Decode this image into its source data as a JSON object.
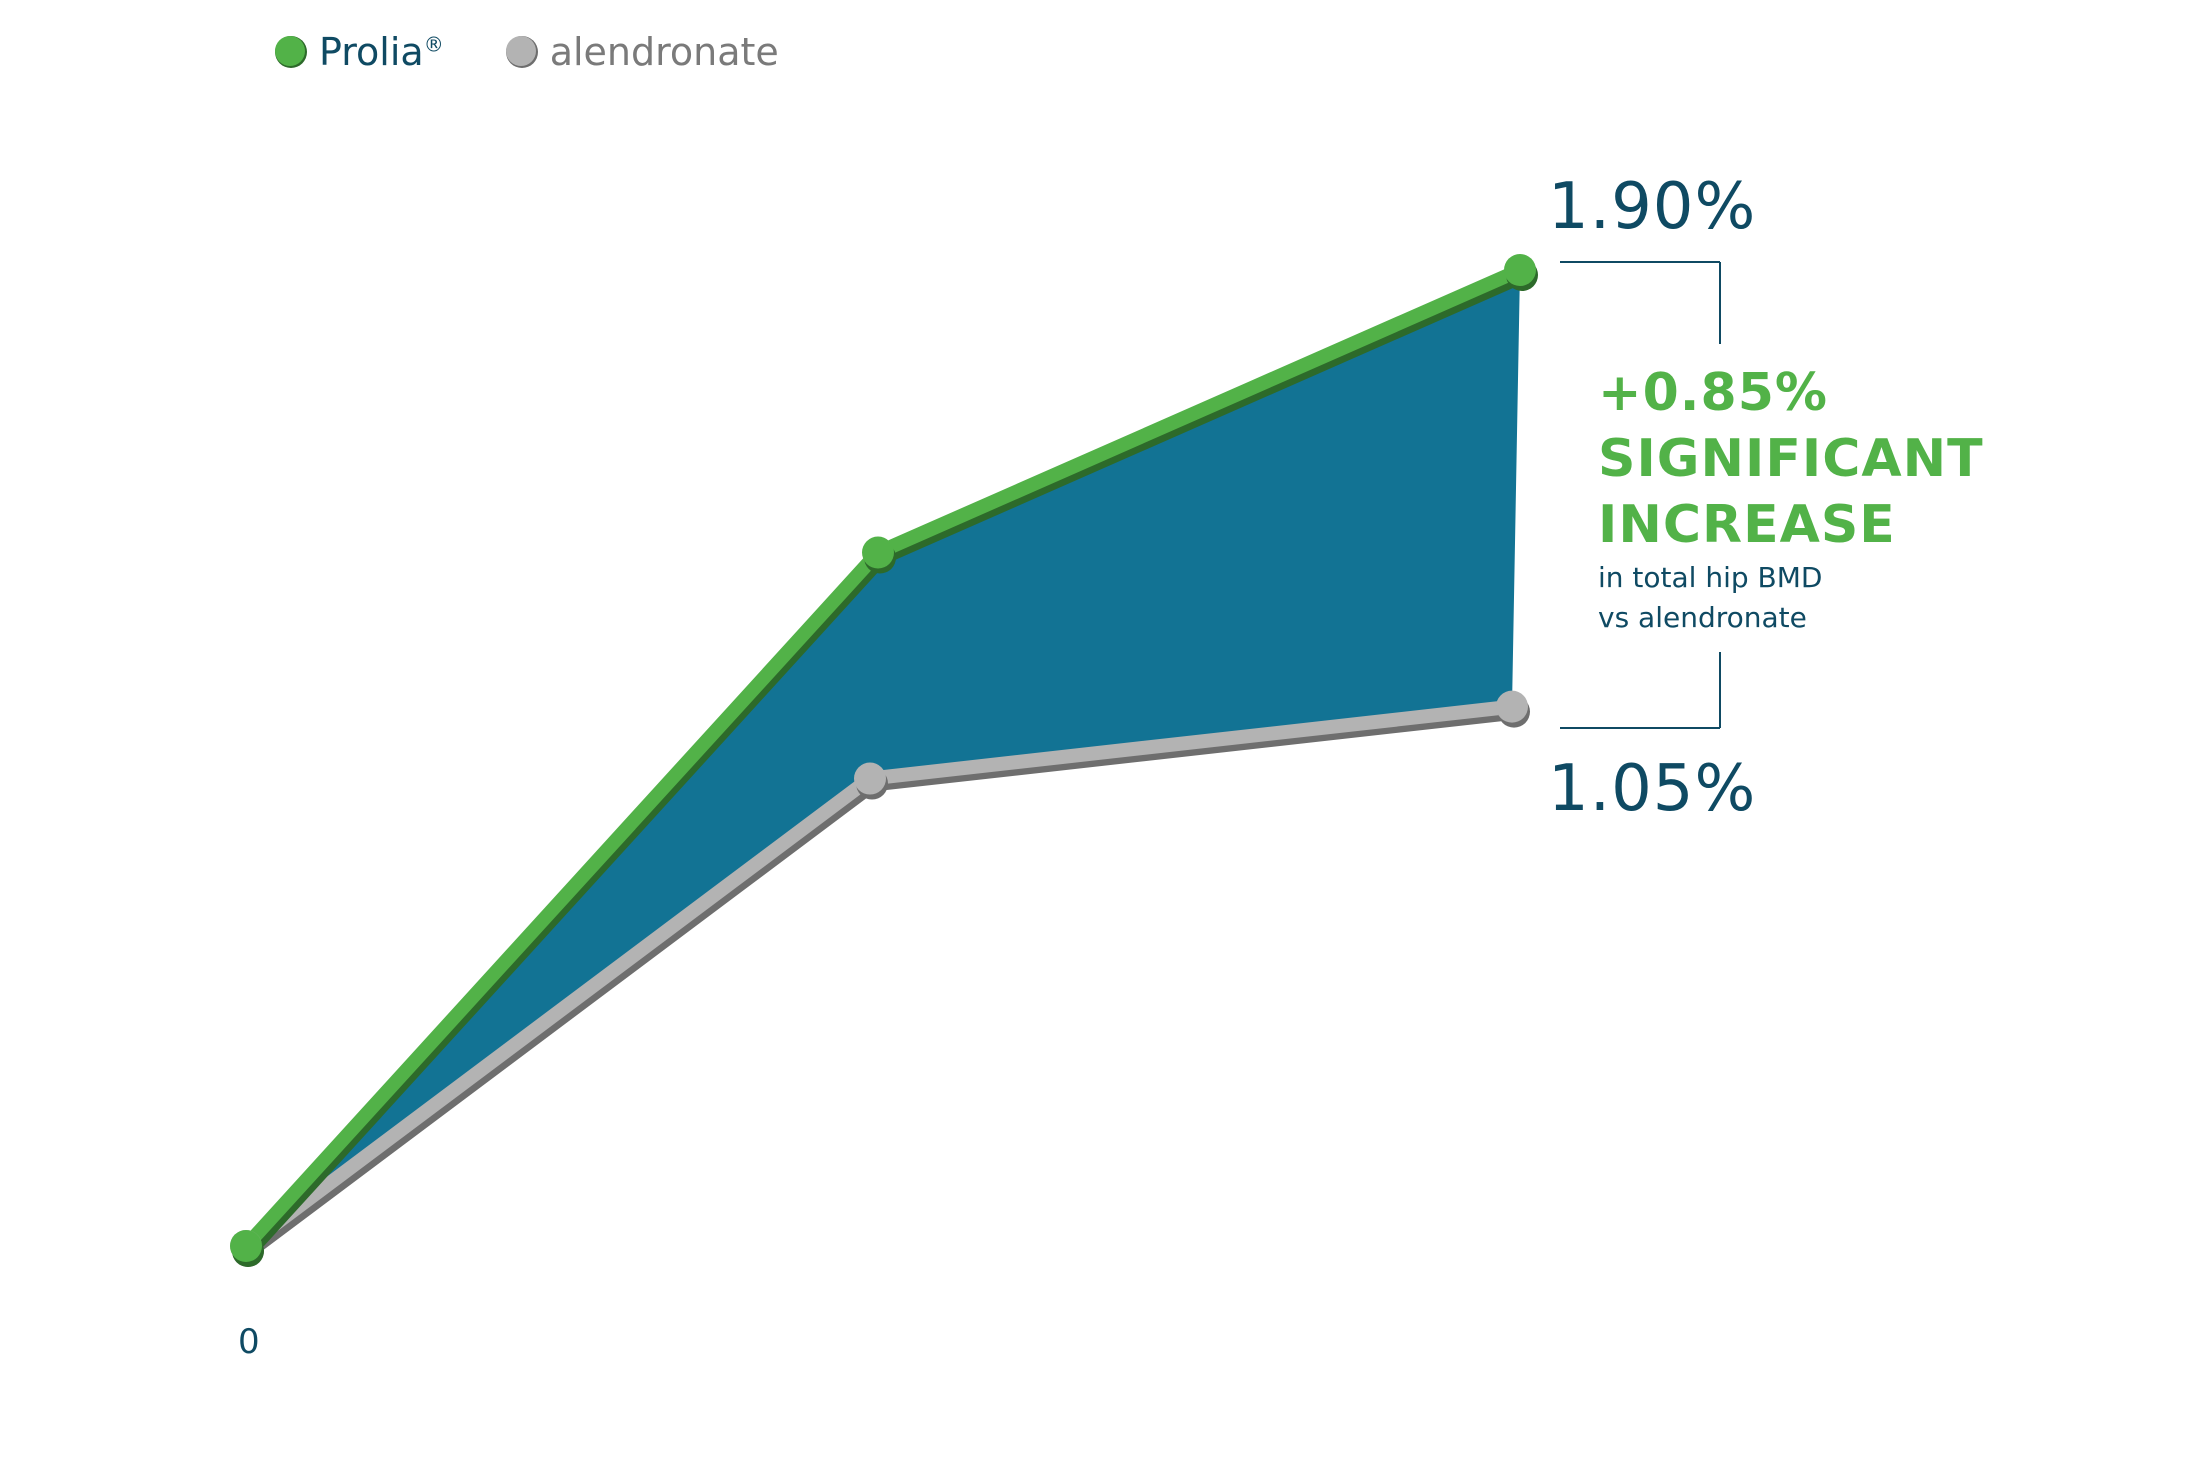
{
  "legend": {
    "prolia_label": "Prolia",
    "prolia_mark": "®",
    "alendronate_label": "alendronate"
  },
  "colors": {
    "prolia": "#52b248",
    "prolia_shadow": "#2d6a2a",
    "alendronate": "#b3b3b3",
    "alendronate_shadow": "#6e6e6e",
    "fill": "#127394",
    "text": "#0f4a63"
  },
  "callout": {
    "headline_1": "+0.85%",
    "headline_2": "SIGNIFICANT",
    "headline_3": "INCREASE",
    "subtext_1": "in total hip BMD",
    "subtext_2": "vs alendronate"
  },
  "labels": {
    "prolia_end": "1.90%",
    "alendronate_end": "1.05%",
    "y_zero": "0"
  },
  "chart_data": {
    "type": "line",
    "title": "",
    "xlabel": "",
    "ylabel": "",
    "x": [
      0,
      1,
      2
    ],
    "ylim": [
      0,
      2.0
    ],
    "grid": false,
    "legend_position": "top-left",
    "fill_between_series": true,
    "series": [
      {
        "name": "Prolia®",
        "values": [
          0,
          1.35,
          1.9
        ],
        "end_label": "1.90%"
      },
      {
        "name": "alendronate",
        "values": [
          0,
          0.91,
          1.05
        ],
        "end_label": "1.05%"
      }
    ],
    "annotations": [
      "+0.85%",
      "SIGNIFICANT",
      "INCREASE",
      "in total hip BMD",
      "vs alendronate"
    ]
  }
}
